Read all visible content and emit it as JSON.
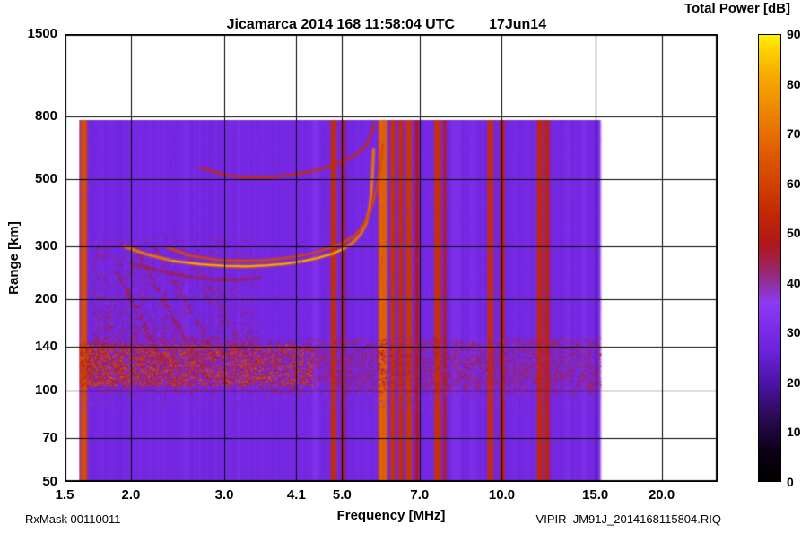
{
  "chart_data": {
    "type": "heatmap",
    "title": "Jicamarca 2014 168 11:58:04 UTC",
    "date_label": "17Jun14",
    "footer_left": "RxMask 00110011",
    "footer_right": "VIPIR  JM91J_2014168115804.RIQ",
    "x_axis": {
      "label": "Frequency [MHz]",
      "scale": "log",
      "min": 1.5,
      "max": 25.5,
      "ticks": [
        1.5,
        2.0,
        3.0,
        4.1,
        5.0,
        7.0,
        10.0,
        15.0,
        20.0
      ],
      "tick_labels": [
        "1.5",
        "2.0",
        "3.0",
        "4.1",
        "5.0",
        "7.0",
        "10.0",
        "15.0",
        "20.0"
      ],
      "gridlines": [
        2.0,
        3.0,
        4.1,
        5.0,
        7.0,
        10.0,
        15.0,
        20.0
      ]
    },
    "y_axis": {
      "label": "Range [km]",
      "scale": "log",
      "min": 50,
      "max": 1500,
      "ticks": [
        50,
        70,
        100,
        140,
        200,
        300,
        500,
        800,
        1500
      ],
      "tick_labels": [
        "50",
        "70",
        "100",
        "140",
        "200",
        "300",
        "500",
        "800",
        "1500"
      ],
      "gridlines": [
        70,
        100,
        140,
        200,
        300,
        500,
        800
      ]
    },
    "colorbar": {
      "label": "Total Power [dB]",
      "min": 0,
      "max": 90,
      "ticks": [
        0,
        10,
        20,
        30,
        40,
        50,
        60,
        70,
        80,
        90
      ],
      "stops": [
        {
          "value": 0,
          "color": "#000000"
        },
        {
          "value": 6,
          "color": "#0d0018"
        },
        {
          "value": 13,
          "color": "#2a0a55"
        },
        {
          "value": 20,
          "color": "#4c14a8"
        },
        {
          "value": 26,
          "color": "#6a22d8"
        },
        {
          "value": 31,
          "color": "#7c2ce8"
        },
        {
          "value": 36,
          "color": "#8d3af2"
        },
        {
          "value": 40,
          "color": "#8f2f9a"
        },
        {
          "value": 44,
          "color": "#a02050"
        },
        {
          "value": 48,
          "color": "#b01818"
        },
        {
          "value": 53,
          "color": "#c02408"
        },
        {
          "value": 58,
          "color": "#cc3a00"
        },
        {
          "value": 64,
          "color": "#d95200"
        },
        {
          "value": 70,
          "color": "#e66e00"
        },
        {
          "value": 76,
          "color": "#f08c00"
        },
        {
          "value": 82,
          "color": "#f6ac00"
        },
        {
          "value": 87,
          "color": "#fcd200"
        },
        {
          "value": 90,
          "color": "#fff200"
        }
      ]
    },
    "data_extent": {
      "f_min": 1.6,
      "f_max": 15.3,
      "r_min": 50,
      "r_max": 780
    },
    "background_db": 29,
    "rfi_stripes": [
      {
        "f": 1.63,
        "width": 6,
        "db": 63
      },
      {
        "f": 4.82,
        "width": 5,
        "db": 55
      },
      {
        "f": 5.03,
        "width": 3,
        "db": 49
      },
      {
        "f": 5.97,
        "width": 8,
        "db": 67
      },
      {
        "f": 6.23,
        "width": 4,
        "db": 56
      },
      {
        "f": 6.45,
        "width": 4,
        "db": 55
      },
      {
        "f": 6.68,
        "width": 5,
        "db": 57
      },
      {
        "f": 6.92,
        "width": 3,
        "db": 48
      },
      {
        "f": 7.57,
        "width": 6,
        "db": 56
      },
      {
        "f": 7.81,
        "width": 3,
        "db": 45
      },
      {
        "f": 9.52,
        "width": 5,
        "db": 55
      },
      {
        "f": 10.02,
        "width": 4,
        "db": 51
      },
      {
        "f": 11.8,
        "width": 5,
        "db": 54
      },
      {
        "f": 12.17,
        "width": 4,
        "db": 52
      },
      {
        "f": 2.55,
        "width": 5,
        "db": 33,
        "alpha": 0.4
      },
      {
        "f": 3.2,
        "width": 4,
        "db": 33,
        "alpha": 0.35
      },
      {
        "f": 4.45,
        "width": 6,
        "db": 35,
        "alpha": 0.5
      },
      {
        "f": 8.2,
        "width": 10,
        "db": 34,
        "alpha": 0.5
      },
      {
        "f": 8.8,
        "width": 8,
        "db": 34,
        "alpha": 0.4
      },
      {
        "f": 13.3,
        "width": 8,
        "db": 33,
        "alpha": 0.4
      },
      {
        "f": 14.3,
        "width": 6,
        "db": 34,
        "alpha": 0.4
      }
    ],
    "speckle_regions": [
      {
        "name": "e-region-band",
        "f": [
          1.6,
          15.3
        ],
        "r": [
          98,
          150
        ],
        "count": 5200,
        "db": [
          36,
          56
        ],
        "alpha": 0.75,
        "size": 2
      },
      {
        "name": "e-region-bright-left",
        "f": [
          1.6,
          4.4
        ],
        "r": [
          104,
          142
        ],
        "count": 4200,
        "db": [
          46,
          68
        ],
        "pow_x": 1.35,
        "alpha": 0.85,
        "size": 2
      },
      {
        "name": "left-scatter-wedge",
        "f": [
          1.7,
          3.45
        ],
        "r": [
          140,
          320
        ],
        "count": 2600,
        "db": [
          34,
          52
        ],
        "pow_x": 1.3,
        "pow_y": 1.9,
        "alpha": 0.7,
        "size": 2
      },
      {
        "name": "low-altitude-noise",
        "f": [
          1.6,
          15.3
        ],
        "r": [
          86,
          100
        ],
        "count": 1300,
        "db": [
          31,
          42
        ],
        "alpha": 0.55,
        "size": 2
      },
      {
        "name": "background-texture",
        "f": [
          1.6,
          15.3
        ],
        "r": [
          150,
          770
        ],
        "count": 2000,
        "db": [
          29,
          37
        ],
        "alpha": 0.4,
        "size": 2
      },
      {
        "name": "mid-band-speckle",
        "f": [
          4.4,
          15.3
        ],
        "r": [
          104,
          145
        ],
        "count": 1500,
        "db": [
          40,
          56
        ],
        "alpha": 0.6,
        "size": 2
      }
    ],
    "diagonal_streaks": [
      {
        "f0": 2.03,
        "r0": 300,
        "f1": 2.8,
        "r1": 106,
        "db": 48
      },
      {
        "f0": 2.2,
        "r0": 305,
        "f1": 3.0,
        "r1": 116,
        "db": 45
      },
      {
        "f0": 1.88,
        "r0": 248,
        "f1": 2.38,
        "r1": 110,
        "db": 47
      },
      {
        "f0": 2.5,
        "r0": 300,
        "f1": 3.3,
        "r1": 135,
        "db": 42
      }
    ],
    "traces": [
      {
        "name": "f-layer-o-mode",
        "db": 72,
        "width": 2.6,
        "core": {
          "f0": 2.4,
          "f1": 5.1,
          "db": 83
        },
        "points": [
          [
            1.95,
            298
          ],
          [
            2.15,
            281
          ],
          [
            2.4,
            268
          ],
          [
            2.7,
            261
          ],
          [
            3.0,
            258
          ],
          [
            3.3,
            257
          ],
          [
            3.6,
            259
          ],
          [
            3.9,
            262
          ],
          [
            4.2,
            267
          ],
          [
            4.5,
            274
          ],
          [
            4.8,
            283
          ],
          [
            5.05,
            295
          ],
          [
            5.25,
            309
          ],
          [
            5.42,
            328
          ],
          [
            5.54,
            354
          ],
          [
            5.62,
            390
          ],
          [
            5.67,
            440
          ],
          [
            5.7,
            500
          ],
          [
            5.72,
            565
          ],
          [
            5.73,
            625
          ]
        ]
      },
      {
        "name": "f-layer-x-mode",
        "db": 62,
        "width": 2,
        "alpha": 0.85,
        "points": [
          [
            2.35,
            296
          ],
          [
            2.6,
            278
          ],
          [
            2.9,
            270
          ],
          [
            3.2,
            268
          ],
          [
            3.5,
            269
          ],
          [
            3.8,
            272
          ],
          [
            4.1,
            277
          ],
          [
            4.4,
            284
          ],
          [
            4.7,
            294
          ],
          [
            5.0,
            306
          ],
          [
            5.25,
            322
          ],
          [
            5.45,
            345
          ],
          [
            5.6,
            376
          ],
          [
            5.72,
            418
          ],
          [
            5.82,
            472
          ],
          [
            5.89,
            538
          ],
          [
            5.94,
            602
          ],
          [
            5.96,
            648
          ]
        ]
      },
      {
        "name": "second-hop-echo",
        "db": 55,
        "width": 2,
        "alpha": 0.8,
        "points": [
          [
            2.7,
            545
          ],
          [
            3.0,
            515
          ],
          [
            3.3,
            505
          ],
          [
            3.6,
            505
          ],
          [
            3.9,
            511
          ],
          [
            4.2,
            521
          ],
          [
            4.5,
            535
          ],
          [
            4.8,
            553
          ],
          [
            5.1,
            577
          ],
          [
            5.35,
            606
          ],
          [
            5.55,
            645
          ],
          [
            5.68,
            700
          ],
          [
            5.75,
            755
          ]
        ]
      },
      {
        "name": "under-spread-echo",
        "db": 46,
        "width": 2,
        "alpha": 0.55,
        "points": [
          [
            2.0,
            262
          ],
          [
            2.3,
            247
          ],
          [
            2.6,
            237
          ],
          [
            2.9,
            232
          ],
          [
            3.2,
            232
          ],
          [
            3.5,
            236
          ]
        ]
      }
    ]
  }
}
